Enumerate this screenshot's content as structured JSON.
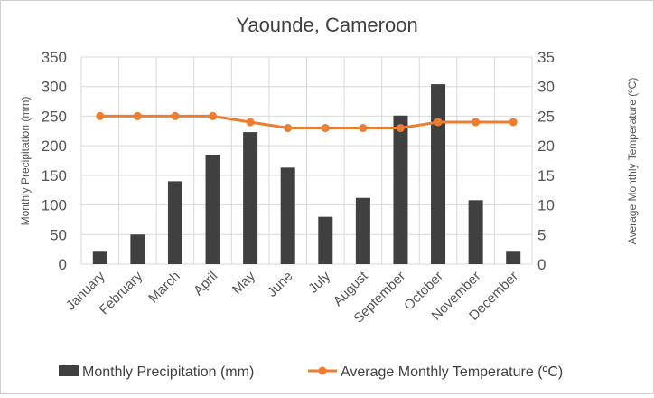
{
  "chart_data": {
    "type": "bar+line",
    "title": "Yaounde, Cameroon",
    "categories": [
      "January",
      "February",
      "March",
      "April",
      "May",
      "June",
      "July",
      "August",
      "September",
      "October",
      "November",
      "December"
    ],
    "series": [
      {
        "name": "Monthly Precipitation  (mm)",
        "type": "bar",
        "axis": "left",
        "color": "#404040",
        "values": [
          21,
          50,
          140,
          185,
          223,
          163,
          80,
          112,
          251,
          304,
          108,
          21
        ]
      },
      {
        "name": "Average Monthly  Temperature (ºC)",
        "type": "line",
        "axis": "right",
        "color": "#ED7D31",
        "values": [
          25,
          25,
          25,
          25,
          24,
          23,
          23,
          23,
          23,
          24,
          24,
          24
        ]
      }
    ],
    "ylabel": "Monthly Precipitation  (mm)",
    "y2label": "Average Monthly  Temperature (ºC)",
    "ylim": [
      0,
      350
    ],
    "yticks": [
      0,
      50,
      100,
      150,
      200,
      250,
      300,
      350
    ],
    "y2lim": [
      0,
      35
    ],
    "y2ticks": [
      0,
      5,
      10,
      15,
      20,
      25,
      30,
      35
    ],
    "grid": true,
    "legend": "bottom"
  }
}
